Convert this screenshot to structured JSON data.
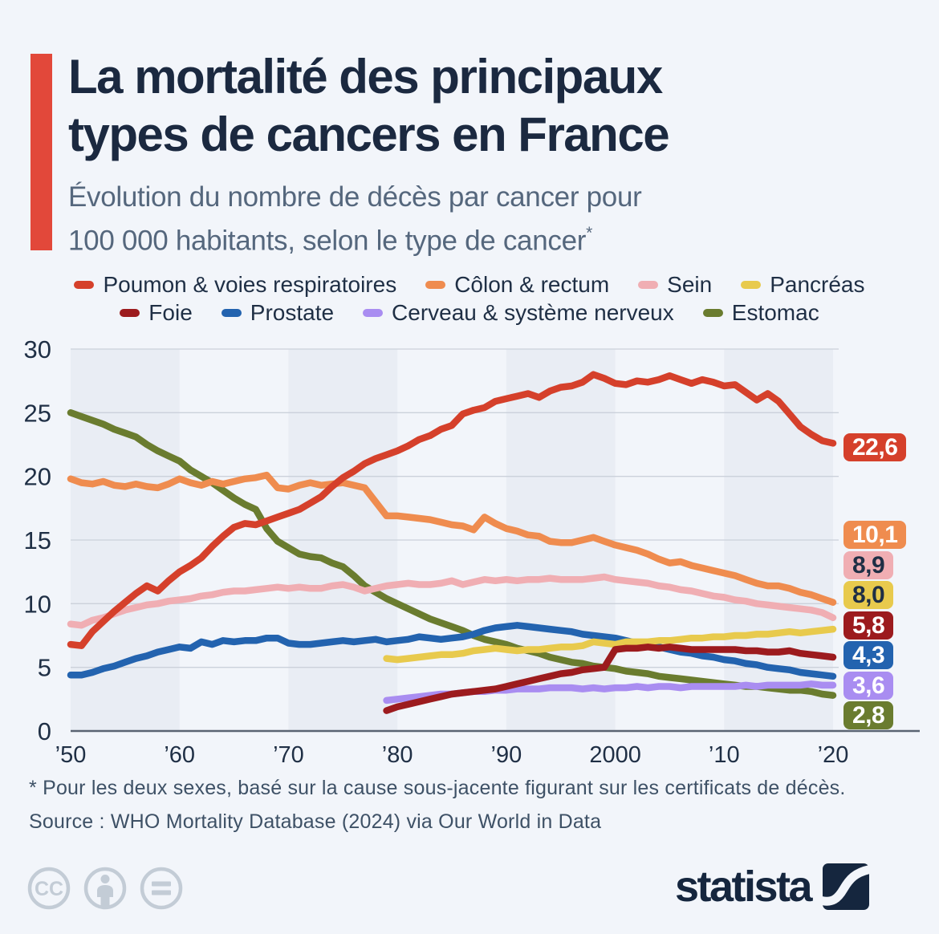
{
  "chart_data": {
    "type": "line",
    "title_line1": "La mortalité des principaux",
    "title_line2": "types de cancers en France",
    "subtitle_line1": "Évolution du nombre de décès par cancer pour",
    "subtitle_line2": "100 000 habitants, selon le type de cancer",
    "subtitle_note_mark": "*",
    "x_start": 1950,
    "x_end": 2020,
    "xtick_labels": [
      "’50",
      "’60",
      "’70",
      "’80",
      "’90",
      "2000",
      "’10",
      "’20"
    ],
    "yticks": [
      0,
      5,
      10,
      15,
      20,
      25,
      30
    ],
    "ylim": [
      0,
      30
    ],
    "grid": true,
    "legend_position": "top",
    "series": [
      {
        "name": "Poumon & voies respiratoires",
        "color": "#d5402b",
        "end_label": "22,6",
        "label_dark_text": false,
        "values": [
          6.8,
          6.7,
          7.8,
          8.6,
          9.4,
          10.1,
          10.8,
          11.4,
          11.0,
          11.8,
          12.5,
          13.0,
          13.6,
          14.5,
          15.3,
          16.0,
          16.3,
          16.2,
          16.5,
          16.8,
          17.1,
          17.4,
          17.9,
          18.4,
          19.2,
          19.9,
          20.4,
          21.0,
          21.4,
          21.7,
          22.0,
          22.4,
          22.9,
          23.2,
          23.7,
          24.0,
          24.9,
          25.2,
          25.4,
          25.9,
          26.1,
          26.3,
          26.5,
          26.2,
          26.7,
          27.0,
          27.1,
          27.4,
          28.0,
          27.7,
          27.3,
          27.2,
          27.5,
          27.4,
          27.6,
          27.9,
          27.6,
          27.3,
          27.6,
          27.4,
          27.1,
          27.2,
          26.6,
          26.0,
          26.5,
          25.9,
          24.9,
          23.9,
          23.3,
          22.8,
          22.6
        ]
      },
      {
        "name": "Côlon & rectum",
        "color": "#ef8c4f",
        "end_label": "10,1",
        "label_dark_text": false,
        "values": [
          19.8,
          19.5,
          19.4,
          19.6,
          19.3,
          19.2,
          19.4,
          19.2,
          19.1,
          19.4,
          19.8,
          19.5,
          19.3,
          19.6,
          19.4,
          19.6,
          19.8,
          19.9,
          20.1,
          19.1,
          19.0,
          19.3,
          19.5,
          19.3,
          19.4,
          19.5,
          19.3,
          19.1,
          18.0,
          16.9,
          16.9,
          16.8,
          16.7,
          16.6,
          16.4,
          16.2,
          16.1,
          15.8,
          16.8,
          16.3,
          15.9,
          15.7,
          15.4,
          15.3,
          14.9,
          14.8,
          14.8,
          15.0,
          15.2,
          14.9,
          14.6,
          14.4,
          14.2,
          13.9,
          13.5,
          13.2,
          13.3,
          13.0,
          12.8,
          12.6,
          12.4,
          12.2,
          11.9,
          11.6,
          11.4,
          11.4,
          11.2,
          10.9,
          10.7,
          10.4,
          10.1
        ]
      },
      {
        "name": "Sein",
        "color": "#f0aeb3",
        "end_label": "8,9",
        "label_dark_text": true,
        "values": [
          8.4,
          8.3,
          8.7,
          8.9,
          9.2,
          9.5,
          9.7,
          9.9,
          10.0,
          10.2,
          10.3,
          10.4,
          10.6,
          10.7,
          10.9,
          11.0,
          11.0,
          11.1,
          11.2,
          11.3,
          11.2,
          11.3,
          11.2,
          11.2,
          11.4,
          11.5,
          11.3,
          11.0,
          11.2,
          11.4,
          11.5,
          11.6,
          11.5,
          11.5,
          11.6,
          11.8,
          11.5,
          11.7,
          11.9,
          11.8,
          11.9,
          11.8,
          11.9,
          11.9,
          12.0,
          11.9,
          11.9,
          11.9,
          12.0,
          12.1,
          11.9,
          11.8,
          11.7,
          11.6,
          11.4,
          11.3,
          11.1,
          11.0,
          10.8,
          10.6,
          10.5,
          10.3,
          10.2,
          10.0,
          9.9,
          9.8,
          9.7,
          9.6,
          9.5,
          9.3,
          8.9
        ]
      },
      {
        "name": "Pancréas",
        "color": "#e8ca4d",
        "end_label": "8,0",
        "label_dark_text": true,
        "values": [
          null,
          null,
          null,
          null,
          null,
          null,
          null,
          null,
          null,
          null,
          null,
          null,
          null,
          null,
          null,
          null,
          null,
          null,
          null,
          null,
          null,
          null,
          null,
          null,
          null,
          null,
          null,
          null,
          null,
          5.7,
          5.6,
          5.7,
          5.8,
          5.9,
          6.0,
          6.0,
          6.1,
          6.3,
          6.4,
          6.5,
          6.4,
          6.3,
          6.4,
          6.4,
          6.5,
          6.6,
          6.6,
          6.7,
          7.0,
          6.9,
          6.8,
          7.0,
          7.0,
          7.0,
          7.1,
          7.1,
          7.2,
          7.3,
          7.3,
          7.4,
          7.4,
          7.5,
          7.5,
          7.6,
          7.6,
          7.7,
          7.8,
          7.7,
          7.8,
          7.9,
          8.0
        ]
      },
      {
        "name": "Foie",
        "color": "#9c1b1e",
        "end_label": "5,8",
        "label_dark_text": false,
        "values": [
          null,
          null,
          null,
          null,
          null,
          null,
          null,
          null,
          null,
          null,
          null,
          null,
          null,
          null,
          null,
          null,
          null,
          null,
          null,
          null,
          null,
          null,
          null,
          null,
          null,
          null,
          null,
          null,
          null,
          1.6,
          1.9,
          2.1,
          2.3,
          2.5,
          2.7,
          2.9,
          3.0,
          3.1,
          3.2,
          3.3,
          3.5,
          3.7,
          3.9,
          4.1,
          4.3,
          4.5,
          4.6,
          4.8,
          4.9,
          5.0,
          6.4,
          6.5,
          6.5,
          6.6,
          6.5,
          6.6,
          6.5,
          6.4,
          6.4,
          6.4,
          6.4,
          6.4,
          6.3,
          6.3,
          6.2,
          6.2,
          6.3,
          6.1,
          6.0,
          5.9,
          5.8
        ]
      },
      {
        "name": "Prostate",
        "color": "#2363af",
        "end_label": "4,3",
        "label_dark_text": false,
        "values": [
          4.4,
          4.4,
          4.6,
          4.9,
          5.1,
          5.4,
          5.7,
          5.9,
          6.2,
          6.4,
          6.6,
          6.5,
          7.0,
          6.8,
          7.1,
          7.0,
          7.1,
          7.1,
          7.3,
          7.3,
          6.9,
          6.8,
          6.8,
          6.9,
          7.0,
          7.1,
          7.0,
          7.1,
          7.2,
          7.0,
          7.1,
          7.2,
          7.4,
          7.3,
          7.2,
          7.3,
          7.4,
          7.6,
          7.9,
          8.1,
          8.2,
          8.3,
          8.2,
          8.1,
          8.0,
          7.9,
          7.8,
          7.6,
          7.5,
          7.4,
          7.3,
          7.1,
          6.9,
          6.8,
          6.6,
          6.4,
          6.2,
          6.1,
          5.9,
          5.8,
          5.6,
          5.5,
          5.3,
          5.2,
          5.0,
          4.9,
          4.8,
          4.6,
          4.5,
          4.4,
          4.3
        ]
      },
      {
        "name": "Cerveau & système nerveux",
        "color": "#a98df1",
        "end_label": "3,6",
        "label_dark_text": false,
        "values": [
          null,
          null,
          null,
          null,
          null,
          null,
          null,
          null,
          null,
          null,
          null,
          null,
          null,
          null,
          null,
          null,
          null,
          null,
          null,
          null,
          null,
          null,
          null,
          null,
          null,
          null,
          null,
          null,
          null,
          2.4,
          2.5,
          2.6,
          2.7,
          2.8,
          2.9,
          2.9,
          3.0,
          3.1,
          3.1,
          3.2,
          3.2,
          3.3,
          3.3,
          3.3,
          3.4,
          3.4,
          3.4,
          3.3,
          3.4,
          3.3,
          3.4,
          3.4,
          3.5,
          3.4,
          3.5,
          3.5,
          3.4,
          3.5,
          3.5,
          3.5,
          3.5,
          3.5,
          3.6,
          3.5,
          3.6,
          3.6,
          3.6,
          3.6,
          3.7,
          3.6,
          3.6
        ]
      },
      {
        "name": "Estomac",
        "color": "#6a7c2f",
        "end_label": "2,8",
        "label_dark_text": false,
        "values": [
          25.0,
          24.7,
          24.4,
          24.1,
          23.7,
          23.4,
          23.1,
          22.5,
          22.0,
          21.6,
          21.2,
          20.5,
          20.0,
          19.5,
          18.9,
          18.3,
          17.8,
          17.4,
          15.9,
          14.9,
          14.4,
          13.9,
          13.7,
          13.6,
          13.2,
          12.9,
          12.2,
          11.4,
          10.9,
          10.4,
          10.0,
          9.6,
          9.2,
          8.8,
          8.5,
          8.2,
          7.9,
          7.5,
          7.2,
          7.0,
          6.8,
          6.5,
          6.3,
          6.1,
          5.8,
          5.6,
          5.4,
          5.3,
          5.1,
          5.0,
          4.9,
          4.7,
          4.6,
          4.5,
          4.3,
          4.2,
          4.1,
          4.0,
          3.9,
          3.8,
          3.7,
          3.6,
          3.5,
          3.5,
          3.4,
          3.3,
          3.2,
          3.2,
          3.1,
          2.9,
          2.8
        ]
      }
    ]
  },
  "footnote": "* Pour les deux sexes, basé sur la cause sous-jacente figurant sur les certificats de décès.",
  "source": "Source : WHO Mortality Database (2024) via Our World in Data",
  "footer": {
    "brand": "statista",
    "license_icons": [
      "creative-commons",
      "attribution",
      "no-derivatives"
    ]
  },
  "style": {
    "accent_color": "#e2483a",
    "background": "#f2f5fa",
    "band_color": "#e9edf4",
    "text_dark": "#1f2f45"
  }
}
